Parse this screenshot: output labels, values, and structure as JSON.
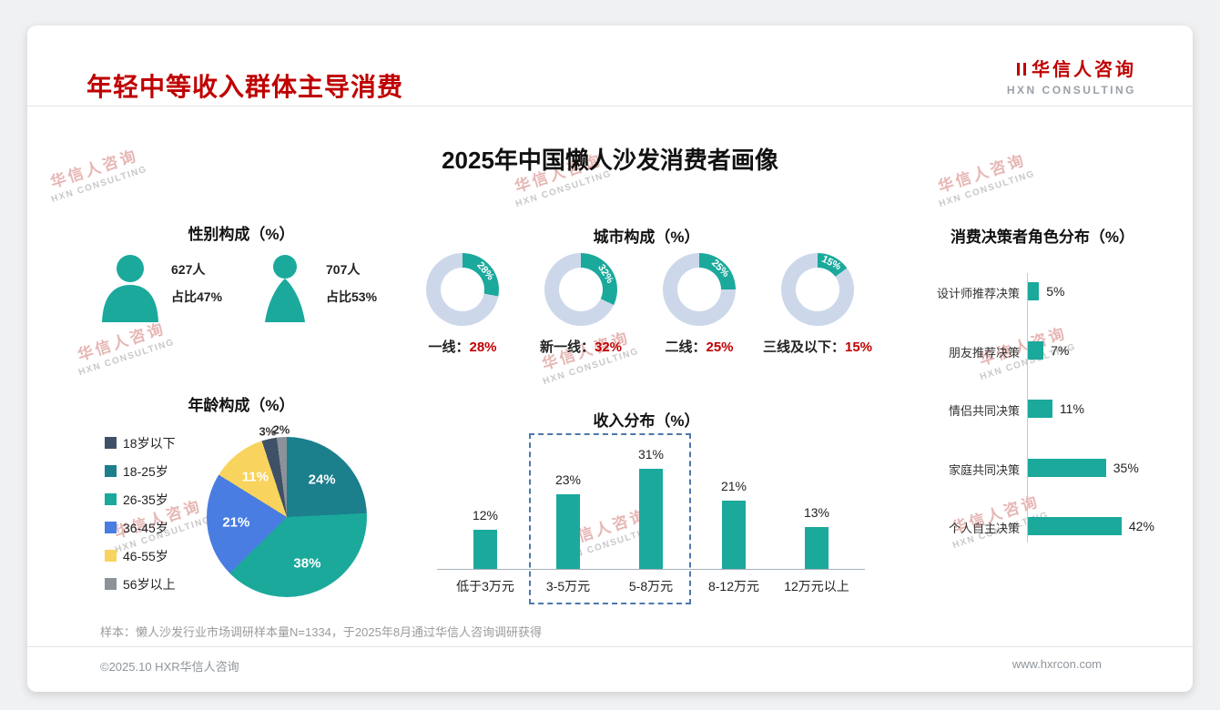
{
  "header": {
    "title": "年轻中等收入群体主导消费",
    "logo_cn": "华信人咨询",
    "logo_en": "HXN CONSULTING"
  },
  "main_title": "2025年中国懒人沙发消费者画像",
  "watermark": {
    "cn": "华信人咨询",
    "en": "HXN CONSULTING"
  },
  "gender": {
    "title": "性别构成（%）",
    "male": {
      "count": "627人",
      "share": "占比47%"
    },
    "female": {
      "count": "707人",
      "share": "占比53%"
    }
  },
  "chart_data": [
    {
      "id": "city_donuts",
      "type": "pie",
      "title": "城市构成（%）",
      "items": [
        {
          "label": "一线",
          "value": 28
        },
        {
          "label": "新一线",
          "value": 32
        },
        {
          "label": "二线",
          "value": 25
        },
        {
          "label": "三线及以下",
          "value": 15
        }
      ],
      "colors": {
        "active": "#1ba99c",
        "rest": "#ccd8ea",
        "value_text": "#c00000"
      }
    },
    {
      "id": "age_pie",
      "type": "pie",
      "title": "年龄构成（%）",
      "slices": [
        {
          "label": "18岁以下",
          "value": 3,
          "color": "#3e5166"
        },
        {
          "label": "18-25岁",
          "value": 24,
          "color": "#1b7f8c"
        },
        {
          "label": "26-35岁",
          "value": 38,
          "color": "#1ba99c"
        },
        {
          "label": "36-45岁",
          "value": 21,
          "color": "#4a7de2"
        },
        {
          "label": "46-55岁",
          "value": 11,
          "color": "#f8d35e"
        },
        {
          "label": "56岁以上",
          "value": 2,
          "color": "#8b9299"
        }
      ],
      "draw_order": [
        "18-25岁",
        "26-35岁",
        "36-45岁",
        "46-55岁",
        "18岁以下",
        "56岁以上"
      ],
      "legend_position": "left"
    },
    {
      "id": "income_bars",
      "type": "bar",
      "title": "收入分布（%）",
      "categories": [
        "低于3万元",
        "3-5万元",
        "5-8万元",
        "8-12万元",
        "12万元以上"
      ],
      "values": [
        12,
        23,
        31,
        21,
        13
      ],
      "bar_color": "#1ba99c",
      "highlight": {
        "categories": [
          "3-5万元",
          "5-8万元"
        ],
        "style": "dashed-box"
      }
    },
    {
      "id": "decision_bars",
      "type": "bar",
      "orientation": "horizontal",
      "title": "消费决策者角色分布（%）",
      "categories": [
        "设计师推荐决策",
        "朋友推荐决策",
        "情侣共同决策",
        "家庭共同决策",
        "个人自主决策"
      ],
      "values": [
        5,
        7,
        11,
        35,
        42
      ],
      "bar_color": "#1ba99c"
    }
  ],
  "footnote": "样本：懒人沙发行业市场调研样本量N=1334，于2025年8月通过华信人咨询调研获得",
  "footer": {
    "left": "©2025.10 HXR华信人咨询",
    "right": "www.hxrcon.com"
  }
}
